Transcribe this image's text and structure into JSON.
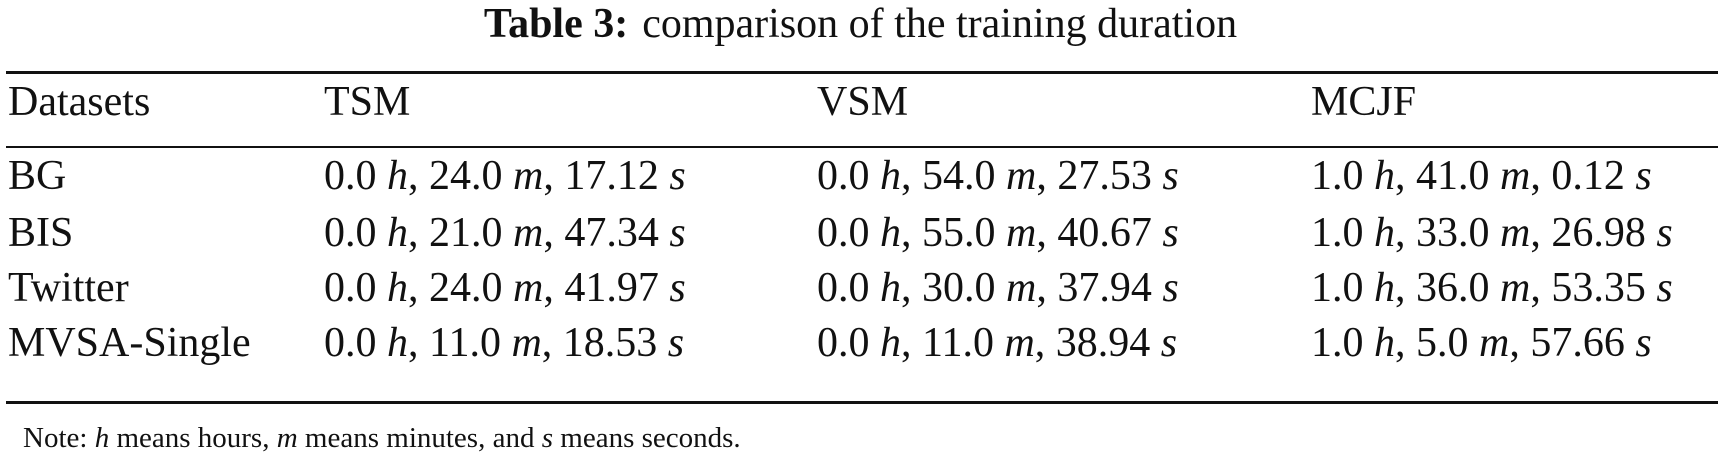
{
  "caption": {
    "label": "Table 3:",
    "text": "comparison of the training duration"
  },
  "table": {
    "headers": [
      "Datasets",
      "TSM",
      "VSM",
      "MCJF"
    ],
    "rows": [
      {
        "dataset": "BG",
        "cells": [
          {
            "h": "0.0",
            "m": "24.0",
            "s": "17.12"
          },
          {
            "h": "0.0",
            "m": "54.0",
            "s": "27.53"
          },
          {
            "h": "1.0",
            "m": "41.0",
            "s": "0.12"
          }
        ]
      },
      {
        "dataset": "BIS",
        "cells": [
          {
            "h": "0.0",
            "m": "21.0",
            "s": "47.34"
          },
          {
            "h": "0.0",
            "m": "55.0",
            "s": "40.67"
          },
          {
            "h": "1.0",
            "m": "33.0",
            "s": "26.98"
          }
        ]
      },
      {
        "dataset": "Twitter",
        "cells": [
          {
            "h": "0.0",
            "m": "24.0",
            "s": "41.97"
          },
          {
            "h": "0.0",
            "m": "30.0",
            "s": "37.94"
          },
          {
            "h": "1.0",
            "m": "36.0",
            "s": "53.35"
          }
        ]
      },
      {
        "dataset": "MVSA-Single",
        "cells": [
          {
            "h": "0.0",
            "m": "11.0",
            "s": "18.53"
          },
          {
            "h": "0.0",
            "m": "11.0",
            "s": "38.94"
          },
          {
            "h": "1.0",
            "m": "5.0",
            "s": "57.66"
          }
        ]
      }
    ],
    "unit_symbols": {
      "h": "h",
      "m": "m",
      "s": "s"
    }
  },
  "note": {
    "prefix": "Note:",
    "h_symbol": "h",
    "h_text": "means hours,",
    "m_symbol": "m",
    "m_text": "means minutes, and",
    "s_symbol": "s",
    "s_text": "means seconds."
  }
}
